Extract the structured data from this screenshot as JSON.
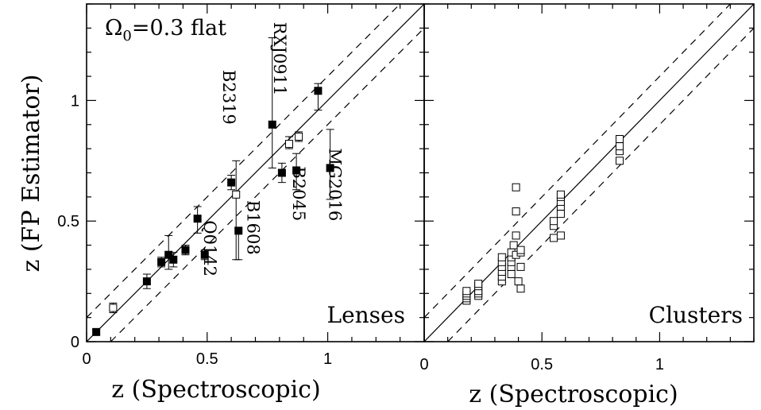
{
  "chart_data": [
    {
      "type": "scatter",
      "panel_label": "Lenses",
      "annotation": "Ω0=0.3 flat",
      "annotation_main": "Ω",
      "annotation_sub": "0",
      "annotation_rest": "=0.3 flat",
      "xlabel": "z (Spectroscopic)",
      "ylabel": "z (FP Estimator)",
      "xlim": [
        0,
        1.4
      ],
      "ylim": [
        0,
        1.4
      ],
      "xticks": [
        "0",
        "0.5",
        "1"
      ],
      "yticks": [
        "0",
        "0.5",
        "1"
      ],
      "reference_lines": {
        "one_to_one": true,
        "dashed_offset": 0.1
      },
      "series": [
        {
          "marker": "filled-square",
          "points": [
            {
              "x": 0.04,
              "y": 0.04,
              "yerr": [
                0.01,
                0.01
              ]
            },
            {
              "x": 0.25,
              "y": 0.25,
              "yerr": [
                0.03,
                0.03
              ]
            },
            {
              "x": 0.31,
              "y": 0.33,
              "yerr": [
                0.02,
                0.02
              ]
            },
            {
              "x": 0.34,
              "y": 0.36,
              "yerr": [
                0.06,
                0.08
              ]
            },
            {
              "x": 0.36,
              "y": 0.34,
              "yerr": [
                0.03,
                0.03
              ]
            },
            {
              "x": 0.41,
              "y": 0.38,
              "yerr": [
                0.02,
                0.02
              ]
            },
            {
              "x": 0.46,
              "y": 0.51,
              "yerr": [
                0.06,
                0.05
              ]
            },
            {
              "x": 0.49,
              "y": 0.36,
              "yerr": [
                0.02,
                0.02
              ]
            },
            {
              "x": 0.6,
              "y": 0.66,
              "yerr": [
                0.03,
                0.03
              ]
            },
            {
              "x": 0.63,
              "y": 0.46,
              "yerr": [
                0.12,
                0.01
              ]
            },
            {
              "x": 0.77,
              "y": 0.9,
              "yerr": [
                0.18,
                0.36
              ]
            },
            {
              "x": 0.81,
              "y": 0.7,
              "yerr": [
                0.04,
                0.04
              ]
            },
            {
              "x": 0.87,
              "y": 0.71,
              "yerr": [
                0.08,
                0.07
              ]
            },
            {
              "x": 0.96,
              "y": 1.04,
              "yerr": [
                0.08,
                0.03
              ]
            },
            {
              "x": 1.01,
              "y": 0.72,
              "yerr": [
                0.13,
                0.16
              ]
            }
          ]
        },
        {
          "marker": "open-square",
          "points": [
            {
              "x": 0.11,
              "y": 0.14,
              "yerr": [
                0.02,
                0.02
              ]
            },
            {
              "x": 0.62,
              "y": 0.61,
              "yerr": [
                0.27,
                0.14
              ]
            },
            {
              "x": 0.84,
              "y": 0.82,
              "yerr": [
                0.02,
                0.03
              ]
            },
            {
              "x": 0.88,
              "y": 0.85,
              "yerr": [
                0.02,
                0.02
              ]
            }
          ]
        }
      ],
      "labels": [
        {
          "text": "RXJ0911",
          "x": 0.79,
          "y": 1.02
        },
        {
          "text": "B2319",
          "x": 0.58,
          "y": 0.9
        },
        {
          "text": "B2045",
          "x": 0.87,
          "y": 0.5
        },
        {
          "text": "MG2016",
          "x": 1.02,
          "y": 0.5
        },
        {
          "text": "B1608",
          "x": 0.68,
          "y": 0.36
        },
        {
          "text": "Q0142",
          "x": 0.5,
          "y": 0.27
        }
      ]
    },
    {
      "type": "scatter",
      "panel_label": "Clusters",
      "xlabel": "z (Spectroscopic)",
      "xlim": [
        0,
        1.4
      ],
      "ylim": [
        0,
        1.4
      ],
      "xticks": [
        "0",
        "0.5",
        "1"
      ],
      "reference_lines": {
        "one_to_one": true,
        "dashed_offset": 0.1
      },
      "series": [
        {
          "marker": "open-square",
          "points": [
            {
              "x": 0.18,
              "y": 0.17
            },
            {
              "x": 0.18,
              "y": 0.18
            },
            {
              "x": 0.18,
              "y": 0.19
            },
            {
              "x": 0.18,
              "y": 0.2
            },
            {
              "x": 0.18,
              "y": 0.21
            },
            {
              "x": 0.23,
              "y": 0.19
            },
            {
              "x": 0.23,
              "y": 0.2
            },
            {
              "x": 0.23,
              "y": 0.21
            },
            {
              "x": 0.23,
              "y": 0.23
            },
            {
              "x": 0.23,
              "y": 0.24
            },
            {
              "x": 0.33,
              "y": 0.25
            },
            {
              "x": 0.33,
              "y": 0.27
            },
            {
              "x": 0.33,
              "y": 0.29
            },
            {
              "x": 0.33,
              "y": 0.31
            },
            {
              "x": 0.33,
              "y": 0.33
            },
            {
              "x": 0.33,
              "y": 0.35
            },
            {
              "x": 0.37,
              "y": 0.28
            },
            {
              "x": 0.37,
              "y": 0.31
            },
            {
              "x": 0.37,
              "y": 0.33
            },
            {
              "x": 0.37,
              "y": 0.35
            },
            {
              "x": 0.37,
              "y": 0.37
            },
            {
              "x": 0.38,
              "y": 0.4
            },
            {
              "x": 0.39,
              "y": 0.36
            },
            {
              "x": 0.39,
              "y": 0.44
            },
            {
              "x": 0.39,
              "y": 0.54
            },
            {
              "x": 0.39,
              "y": 0.64
            },
            {
              "x": 0.4,
              "y": 0.25
            },
            {
              "x": 0.41,
              "y": 0.22
            },
            {
              "x": 0.41,
              "y": 0.31
            },
            {
              "x": 0.41,
              "y": 0.37
            },
            {
              "x": 0.41,
              "y": 0.38
            },
            {
              "x": 0.55,
              "y": 0.43
            },
            {
              "x": 0.55,
              "y": 0.48
            },
            {
              "x": 0.55,
              "y": 0.5
            },
            {
              "x": 0.58,
              "y": 0.44
            },
            {
              "x": 0.58,
              "y": 0.53
            },
            {
              "x": 0.58,
              "y": 0.56
            },
            {
              "x": 0.58,
              "y": 0.58
            },
            {
              "x": 0.58,
              "y": 0.6
            },
            {
              "x": 0.58,
              "y": 0.61
            },
            {
              "x": 0.83,
              "y": 0.75
            },
            {
              "x": 0.83,
              "y": 0.79
            },
            {
              "x": 0.83,
              "y": 0.81
            },
            {
              "x": 0.83,
              "y": 0.84
            }
          ]
        }
      ]
    }
  ]
}
